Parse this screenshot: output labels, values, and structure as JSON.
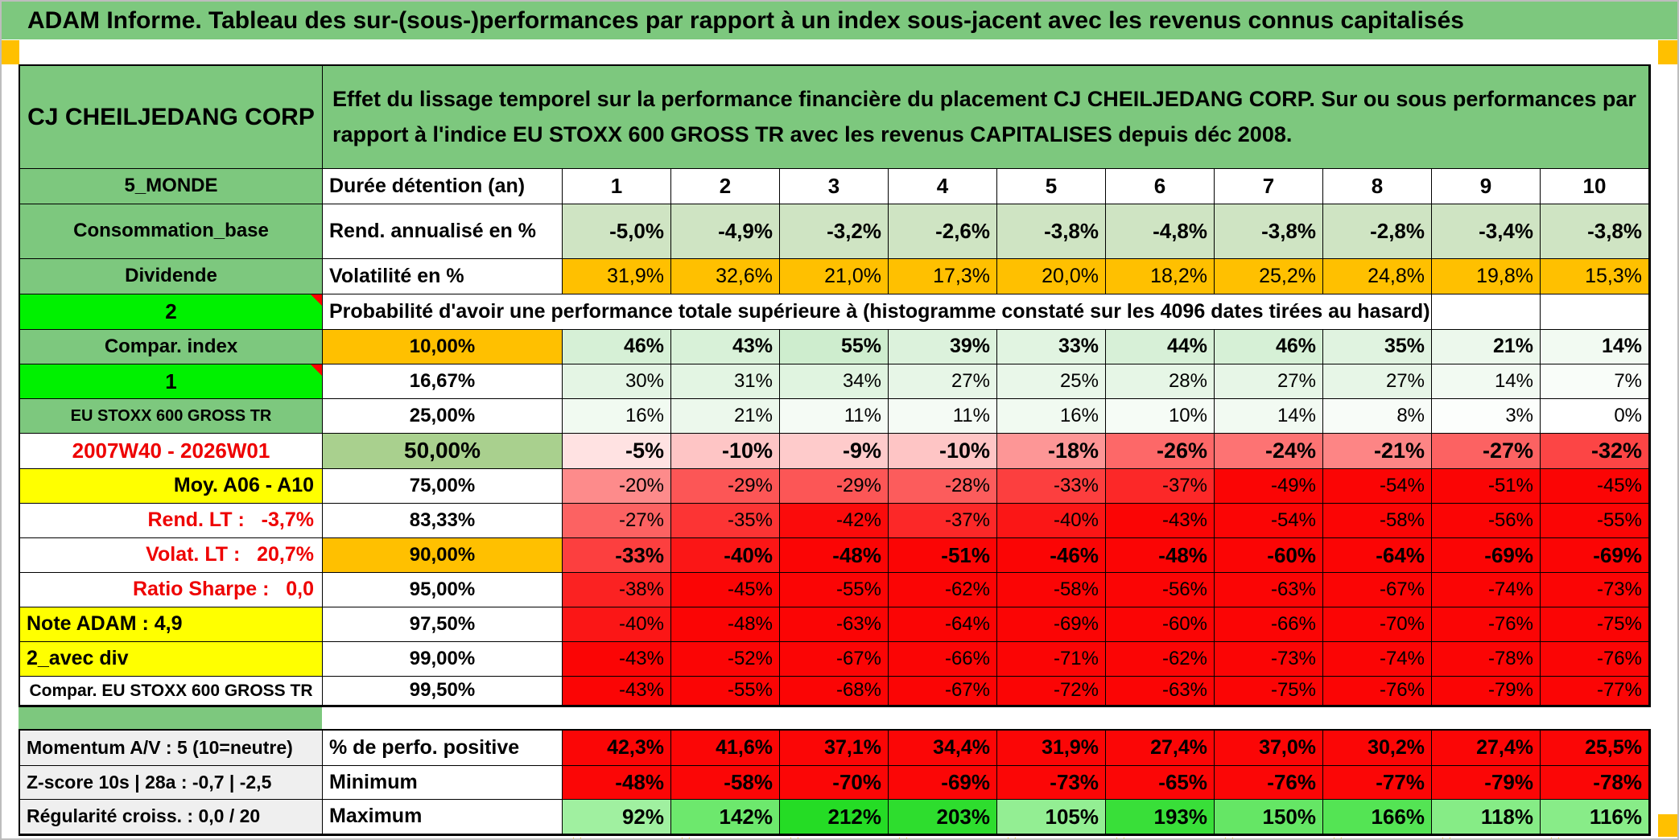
{
  "title": "ADAM Informe. Tableau des sur-(sous-)performances par rapport à un index sous-jacent avec les revenus connus capitalisés",
  "header": {
    "instrument": "CJ CHEILJEDANG CORP",
    "description": "Effet du lissage temporel sur la performance financière du placement CJ CHEILJEDANG CORP. Sur ou sous performances par rapport à l'indice EU STOXX 600 GROSS TR avec les revenus CAPITALISES depuis déc 2008."
  },
  "colors": {
    "header_green": "#7dc87e",
    "bright_green": "#00f100",
    "orange": "#ffc000",
    "yellow": "#ffff00",
    "rend_green": "#cfe4c3",
    "mid_green": "#a9d08e",
    "red_cell": "#fb0606",
    "gray_cell": "#efefef",
    "red_text": "#ee0000",
    "corner_marker": "#ffc000"
  },
  "table": {
    "rows_main": [
      {
        "left": {
          "t": "5_MONDE",
          "cls": "lg",
          "bg": "header_green"
        },
        "mid": {
          "t": "Durée détention (an)",
          "cls": "mwl"
        },
        "cells": [
          "1",
          "2",
          "3",
          "4",
          "5",
          "6",
          "7",
          "8",
          "9",
          "10"
        ],
        "scale": "none",
        "bg": "#ffffff",
        "bold": true,
        "align": "center",
        "size": 26
      },
      {
        "left": {
          "t": "Consommation_base",
          "cls": "lg",
          "bg": "header_green"
        },
        "mid": {
          "t": "Rend. annualisé en %",
          "cls": "mwl"
        },
        "cells": [
          "-5,0%",
          "-4,9%",
          "-3,2%",
          "-2,6%",
          "-3,8%",
          "-4,8%",
          "-3,8%",
          "-2,8%",
          "-3,4%",
          "-3,8%"
        ],
        "scale": "none",
        "bg": "rend_green",
        "bold": true,
        "align": "right",
        "size": 26
      },
      {
        "left": {
          "t": "Dividende",
          "cls": "lg",
          "bg": "header_green"
        },
        "mid": {
          "t": "Volatilité en %",
          "cls": "mwl"
        },
        "cells": [
          "31,9%",
          "32,6%",
          "21,0%",
          "17,3%",
          "20,0%",
          "18,2%",
          "25,2%",
          "24,8%",
          "19,8%",
          "15,3%"
        ],
        "scale": "none",
        "bg": "orange",
        "bold": false,
        "align": "right",
        "size": 25
      },
      {
        "left": {
          "t": "2",
          "cls": "lb",
          "bg": "bright_green",
          "marker": true
        },
        "merged": "Probabilité d'avoir une performance totale supérieure à (histogramme constaté sur les 4096 dates tirées au hasard)",
        "tail": 2
      },
      {
        "left": {
          "t": "Compar. index",
          "cls": "lg",
          "bg": "header_green"
        },
        "mid": {
          "t": "10,00%",
          "cls": "mor",
          "bg": "orange"
        },
        "cells": [
          "46%",
          "43%",
          "55%",
          "39%",
          "33%",
          "44%",
          "46%",
          "35%",
          "21%",
          "14%"
        ],
        "values": [
          46,
          43,
          55,
          39,
          33,
          44,
          46,
          35,
          21,
          14
        ],
        "scale": "pos",
        "bold": true,
        "align": "right",
        "size": 25
      },
      {
        "left": {
          "t": "1",
          "cls": "lb",
          "bg": "bright_green",
          "marker": true
        },
        "mid": {
          "t": "16,67%",
          "cls": "mwc"
        },
        "cells": [
          "30%",
          "31%",
          "34%",
          "27%",
          "25%",
          "28%",
          "27%",
          "27%",
          "14%",
          "7%"
        ],
        "values": [
          30,
          31,
          34,
          27,
          25,
          28,
          27,
          27,
          14,
          7
        ],
        "scale": "pos",
        "bold": false,
        "align": "right",
        "size": 24
      },
      {
        "left": {
          "t": "EU STOXX 600 GROSS TR",
          "cls": "lgs",
          "bg": "header_green"
        },
        "mid": {
          "t": "25,00%",
          "cls": "mwc"
        },
        "cells": [
          "16%",
          "21%",
          "11%",
          "11%",
          "16%",
          "10%",
          "14%",
          "8%",
          "3%",
          "0%"
        ],
        "values": [
          16,
          21,
          11,
          11,
          16,
          10,
          14,
          8,
          3,
          0
        ],
        "scale": "pos",
        "bold": false,
        "align": "right",
        "size": 24
      },
      {
        "left": {
          "t": "2007W40 - 2026W01",
          "cls": "lrc",
          "bg": "#ffffff",
          "color": "red_text"
        },
        "mid": {
          "t": "50,00%",
          "cls": "mg50",
          "bg": "mid_green"
        },
        "cells": [
          "-5%",
          "-10%",
          "-9%",
          "-10%",
          "-18%",
          "-26%",
          "-24%",
          "-21%",
          "-27%",
          "-32%"
        ],
        "values": [
          -5,
          -10,
          -9,
          -10,
          -18,
          -26,
          -24,
          -21,
          -27,
          -32
        ],
        "scale": "neg",
        "bold": true,
        "align": "right",
        "size": 27
      },
      {
        "left": {
          "t": "Moy. A06 - A10",
          "cls": "lyr",
          "bg": "yellow"
        },
        "mid": {
          "t": "75,00%",
          "cls": "mwc"
        },
        "cells": [
          "-20%",
          "-29%",
          "-29%",
          "-28%",
          "-33%",
          "-37%",
          "-49%",
          "-54%",
          "-51%",
          "-45%"
        ],
        "values": [
          -20,
          -29,
          -29,
          -28,
          -33,
          -37,
          -49,
          -54,
          -51,
          -45
        ],
        "scale": "neg",
        "bold": false,
        "align": "right",
        "size": 24
      },
      {
        "left": {
          "t": "Rend. LT :   -3,7%",
          "cls": "lrr",
          "bg": "#ffffff",
          "color": "red_text"
        },
        "mid": {
          "t": "83,33%",
          "cls": "mwc"
        },
        "cells": [
          "-27%",
          "-35%",
          "-42%",
          "-37%",
          "-40%",
          "-43%",
          "-54%",
          "-58%",
          "-56%",
          "-55%"
        ],
        "values": [
          -27,
          -35,
          -42,
          -37,
          -40,
          -43,
          -54,
          -58,
          -56,
          -55
        ],
        "scale": "neg",
        "bold": false,
        "align": "right",
        "size": 24
      },
      {
        "left": {
          "t": "Volat. LT :   20,7%",
          "cls": "lrr",
          "bg": "#ffffff",
          "color": "red_text"
        },
        "mid": {
          "t": "90,00%",
          "cls": "mor",
          "bg": "orange"
        },
        "cells": [
          "-33%",
          "-40%",
          "-48%",
          "-51%",
          "-46%",
          "-48%",
          "-60%",
          "-64%",
          "-69%",
          "-69%"
        ],
        "values": [
          -33,
          -40,
          -48,
          -51,
          -46,
          -48,
          -60,
          -64,
          -69,
          -69
        ],
        "scale": "neg",
        "bold": true,
        "align": "right",
        "size": 26
      },
      {
        "left": {
          "t": "Ratio Sharpe :   0,0",
          "cls": "lrr",
          "bg": "#ffffff",
          "color": "red_text"
        },
        "mid": {
          "t": "95,00%",
          "cls": "mwc"
        },
        "cells": [
          "-38%",
          "-45%",
          "-55%",
          "-62%",
          "-58%",
          "-56%",
          "-63%",
          "-67%",
          "-74%",
          "-73%"
        ],
        "values": [
          -38,
          -45,
          -55,
          -62,
          -58,
          -56,
          -63,
          -67,
          -74,
          -73
        ],
        "scale": "neg",
        "bold": false,
        "align": "right",
        "size": 24
      },
      {
        "left": {
          "t": "Note ADAM : 4,9",
          "cls": "lyl",
          "bg": "yellow"
        },
        "mid": {
          "t": "97,50%",
          "cls": "mwc"
        },
        "cells": [
          "-40%",
          "-48%",
          "-63%",
          "-64%",
          "-69%",
          "-60%",
          "-66%",
          "-70%",
          "-76%",
          "-75%"
        ],
        "values": [
          -40,
          -48,
          -63,
          -64,
          -69,
          -60,
          -66,
          -70,
          -76,
          -75
        ],
        "scale": "neg",
        "bold": false,
        "align": "right",
        "size": 24
      },
      {
        "left": {
          "t": "2_avec div",
          "cls": "lyl",
          "bg": "yellow"
        },
        "mid": {
          "t": "99,00%",
          "cls": "mwc"
        },
        "cells": [
          "-43%",
          "-52%",
          "-67%",
          "-66%",
          "-71%",
          "-62%",
          "-73%",
          "-74%",
          "-78%",
          "-76%"
        ],
        "values": [
          -43,
          -52,
          -67,
          -66,
          -71,
          -62,
          -73,
          -74,
          -78,
          -76
        ],
        "scale": "neg",
        "bold": false,
        "align": "right",
        "size": 24
      },
      {
        "left": {
          "t": "Compar. EU STOXX 600 GROSS TR",
          "cls": "lwcs",
          "bg": "#ffffff"
        },
        "mid": {
          "t": "99,50%",
          "cls": "mwc"
        },
        "cells": [
          "-43%",
          "-55%",
          "-68%",
          "-67%",
          "-72%",
          "-63%",
          "-75%",
          "-76%",
          "-79%",
          "-77%"
        ],
        "values": [
          -43,
          -55,
          -68,
          -67,
          -72,
          -63,
          -75,
          -76,
          -79,
          -77
        ],
        "scale": "neg",
        "bold": false,
        "align": "right",
        "size": 24
      }
    ],
    "rows_bottom": [
      {
        "left": {
          "t": "Momentum A/V : 5 (10=neutre)",
          "cls": "lgray",
          "bg": "gray_cell"
        },
        "mid": {
          "t": "% de perfo. positive",
          "cls": "mwl"
        },
        "cells": [
          "42,3%",
          "41,6%",
          "37,1%",
          "34,4%",
          "31,9%",
          "27,4%",
          "37,0%",
          "30,2%",
          "27,4%",
          "25,5%"
        ],
        "scale": "red",
        "bold": true,
        "align": "right",
        "size": 25
      },
      {
        "left": {
          "t": "Z-score 10s | 28a : -0,7 | -2,5",
          "cls": "lgray",
          "bg": "gray_cell"
        },
        "mid": {
          "t": "Minimum",
          "cls": "mwl"
        },
        "cells": [
          "-48%",
          "-58%",
          "-70%",
          "-69%",
          "-73%",
          "-65%",
          "-76%",
          "-77%",
          "-79%",
          "-78%"
        ],
        "scale": "red",
        "bold": true,
        "align": "right",
        "size": 26
      },
      {
        "left": {
          "t": "Régularité croiss. : 0,0 / 20",
          "cls": "lgray",
          "bg": "gray_cell"
        },
        "mid": {
          "t": "Maximum",
          "cls": "mwl"
        },
        "cells": [
          "92%",
          "142%",
          "212%",
          "203%",
          "105%",
          "193%",
          "150%",
          "166%",
          "118%",
          "116%"
        ],
        "values": [
          92,
          142,
          212,
          203,
          105,
          193,
          150,
          166,
          118,
          116
        ],
        "scale": "max",
        "bold": true,
        "align": "right",
        "size": 26
      }
    ]
  }
}
